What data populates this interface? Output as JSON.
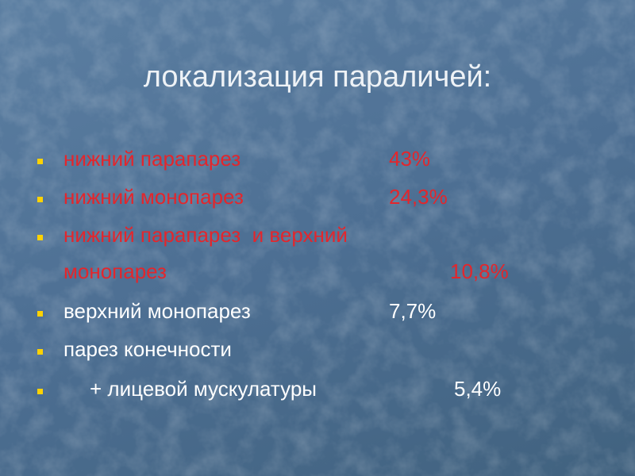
{
  "title": "локализация параличей:",
  "items": [
    {
      "lines": [
        "нижний парапарез"
      ],
      "value": "43%",
      "color": "#e3262c"
    },
    {
      "lines": [
        "нижний монопарез"
      ],
      "value": "24,3%",
      "color": "#e3262c"
    },
    {
      "lines": [
        "нижний парапарез  и верхний",
        "монопарез"
      ],
      "value": "10,8%",
      "color": "#e3262c"
    },
    {
      "lines": [
        "верхний монопарез"
      ],
      "value": "7,7%",
      "color": "#ffffff"
    },
    {
      "lines": [
        "парез конечности"
      ],
      "color": "#ffffff"
    },
    {
      "lines": [
        "+ лицевой мускулатуры"
      ],
      "value": "5,4%",
      "color": "#ffffff"
    }
  ]
}
